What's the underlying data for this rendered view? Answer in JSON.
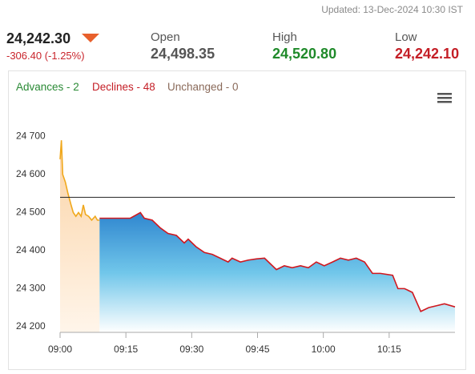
{
  "header": {
    "updated": "Updated: 13-Dec-2024 10:30 IST",
    "price": "24,242.30",
    "change": "-306.40 (-1.25%)",
    "open": {
      "label": "Open",
      "value": "24,498.35"
    },
    "high": {
      "label": "High",
      "value": "24,520.80"
    },
    "low": {
      "label": "Low",
      "value": "24,242.10"
    }
  },
  "breadth": {
    "advances": "Advances - 2",
    "declines": "Declines - 48",
    "unchanged": "Unchanged - 0"
  },
  "chart_data": {
    "type": "area",
    "xlim": [
      0,
      90
    ],
    "xticks": [
      {
        "value": 0,
        "label": "09:00"
      },
      {
        "value": 15,
        "label": "09:15"
      },
      {
        "value": 30,
        "label": "09:30"
      },
      {
        "value": 45,
        "label": "09:45"
      },
      {
        "value": 60,
        "label": "10:00"
      },
      {
        "value": 75,
        "label": "10:15"
      }
    ],
    "ylim": [
      24185,
      24785
    ],
    "yticks": [
      {
        "value": 24200,
        "label": "24 200"
      },
      {
        "value": 24300,
        "label": "24 300"
      },
      {
        "value": 24400,
        "label": "24 400"
      },
      {
        "value": 24500,
        "label": "24 500"
      },
      {
        "value": 24600,
        "label": "24 600"
      },
      {
        "value": 24700,
        "label": "24 700"
      }
    ],
    "reference_line": 24540,
    "series": [
      {
        "color": "#f0a81c",
        "fill": "#fbd9b0",
        "x": [
          0,
          0.3,
          0.6,
          1.2,
          1.8,
          2.5,
          3,
          3.6,
          4.2,
          4.8,
          5.3,
          5.8,
          6.5,
          7.2,
          8,
          8.5,
          9
        ],
        "values": [
          24640,
          24690,
          24600,
          24580,
          24550,
          24520,
          24500,
          24490,
          24500,
          24490,
          24520,
          24495,
          24490,
          24480,
          24490,
          24480,
          24480
        ]
      },
      {
        "color": "#d0181f",
        "fill": "#3aa2dc",
        "x": [
          9,
          12,
          16,
          18.3,
          19.2,
          21,
          22.8,
          24.6,
          26.5,
          28.3,
          29.2,
          31,
          32.9,
          34.7,
          36.5,
          38.3,
          39.2,
          41.1,
          42.9,
          44.7,
          46.6,
          48.4,
          49.3,
          51.1,
          52.9,
          54.8,
          56.6,
          58.4,
          60.2,
          62.1,
          63.9,
          65.7,
          67.5,
          69.4,
          71.2,
          73,
          75.8,
          77,
          78.5,
          80.3,
          82.2,
          84,
          85.8,
          87.6,
          90
        ],
        "values": [
          24485,
          24485,
          24485,
          24500,
          24485,
          24480,
          24460,
          24445,
          24440,
          24420,
          24430,
          24410,
          24395,
          24390,
          24380,
          24370,
          24380,
          24370,
          24375,
          24378,
          24380,
          24360,
          24350,
          24360,
          24355,
          24360,
          24355,
          24370,
          24360,
          24370,
          24380,
          24375,
          24380,
          24370,
          24340,
          24340,
          24335,
          24300,
          24300,
          24290,
          24240,
          24250,
          24255,
          24260,
          24252
        ]
      }
    ]
  }
}
